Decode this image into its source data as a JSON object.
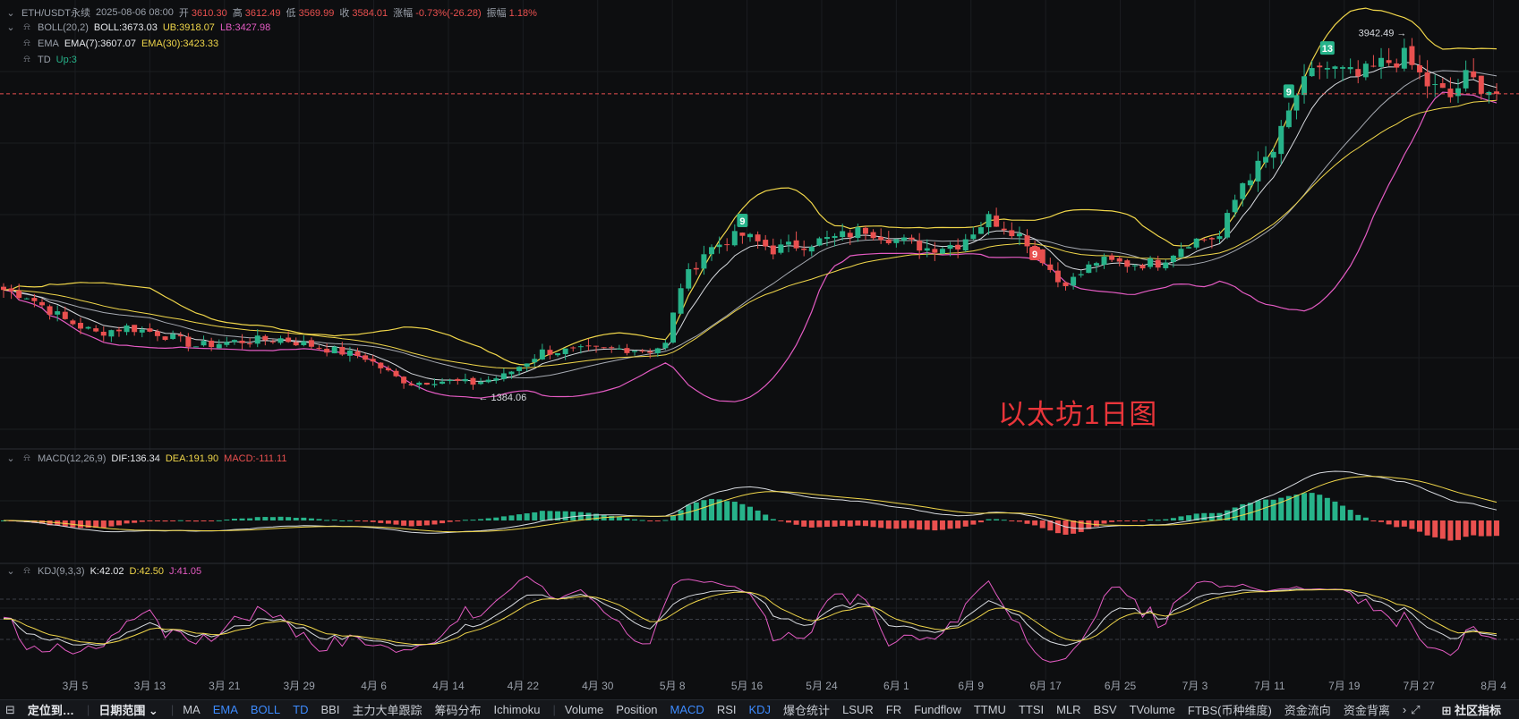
{
  "header": {
    "symbol": "ETH/USDT永续",
    "datetime": "2025-08-06 08:00",
    "open_label": "开",
    "open": "3610.30",
    "high_label": "高",
    "high": "3612.49",
    "low_label": "低",
    "low": "3569.99",
    "close_label": "收",
    "close": "3584.01",
    "change_label": "涨幅",
    "change": "-0.73%(-26.28)",
    "amp_label": "振幅",
    "amp": "1.18%"
  },
  "indicators": {
    "boll": {
      "name": "BOLL(20,2)",
      "mid": "BOLL:3673.03",
      "ub": "UB:3918.07",
      "lb": "LB:3427.98"
    },
    "ema": {
      "name": "EMA",
      "ema7": "EMA(7):3607.07",
      "ema30": "EMA(30):3423.33"
    },
    "td": {
      "name": "TD",
      "value": "Up:3"
    },
    "macd": {
      "name": "MACD(12,26,9)",
      "dif": "DIF:136.34",
      "dea": "DEA:191.90",
      "macd": "MACD:-111.11"
    },
    "kdj": {
      "name": "KDJ(9,3,3)",
      "k": "K:42.02",
      "d": "D:42.50",
      "j": "J:41.05"
    }
  },
  "annotation": "以太坊1日图",
  "colors": {
    "bg": "#0d0e10",
    "up": "#27b38a",
    "down": "#e9504f",
    "white_line": "#d8dbe0",
    "yellow_line": "#f0d64a",
    "magenta_line": "#e45bc3"
  },
  "chart_data": {
    "type": "candlestick",
    "title": "",
    "x_ticks": [
      "3月 5",
      "3月 13",
      "3月 21",
      "3月 29",
      "4月 6",
      "4月 14",
      "4月 22",
      "4月 30",
      "5月 8",
      "5月 16",
      "5月 24",
      "6月 1",
      "6月 9",
      "6月 17",
      "6月 25",
      "7月 3",
      "7月 11",
      "7月 19",
      "7月 27",
      "8月 4"
    ],
    "price_range": [
      1250,
      4100
    ],
    "labels": {
      "high": "3942.49",
      "low": "1384.06"
    },
    "td_markers": [
      {
        "text": "9",
        "index": 96,
        "price": 2700,
        "color": "up"
      },
      {
        "text": "9",
        "index": 134,
        "price": 2470,
        "color": "down"
      },
      {
        "text": "9",
        "index": 167,
        "price": 3600,
        "color": "up"
      },
      {
        "text": "13",
        "index": 172,
        "price": 3900,
        "color": "up"
      }
    ],
    "anchors": [
      [
        0,
        2220
      ],
      [
        3,
        2180
      ],
      [
        8,
        2010
      ],
      [
        12,
        1920
      ],
      [
        16,
        1960
      ],
      [
        20,
        1920
      ],
      [
        25,
        1830
      ],
      [
        30,
        1860
      ],
      [
        36,
        1880
      ],
      [
        42,
        1810
      ],
      [
        47,
        1750
      ],
      [
        51,
        1610
      ],
      [
        53,
        1570
      ],
      [
        56,
        1590
      ],
      [
        61,
        1570
      ],
      [
        65,
        1620
      ],
      [
        70,
        1790
      ],
      [
        76,
        1800
      ],
      [
        81,
        1810
      ],
      [
        84,
        1800
      ],
      [
        86,
        1840
      ],
      [
        88,
        2250
      ],
      [
        91,
        2480
      ],
      [
        94,
        2570
      ],
      [
        96,
        2600
      ],
      [
        100,
        2500
      ],
      [
        104,
        2540
      ],
      [
        108,
        2580
      ],
      [
        112,
        2640
      ],
      [
        116,
        2570
      ],
      [
        120,
        2510
      ],
      [
        124,
        2540
      ],
      [
        128,
        2720
      ],
      [
        131,
        2640
      ],
      [
        134,
        2520
      ],
      [
        137,
        2280
      ],
      [
        139,
        2290
      ],
      [
        142,
        2420
      ],
      [
        146,
        2400
      ],
      [
        150,
        2410
      ],
      [
        154,
        2560
      ],
      [
        158,
        2590
      ],
      [
        161,
        2970
      ],
      [
        165,
        3180
      ],
      [
        168,
        3580
      ],
      [
        171,
        3780
      ],
      [
        176,
        3700
      ],
      [
        179,
        3790
      ],
      [
        182,
        3840
      ],
      [
        185,
        3650
      ],
      [
        188,
        3560
      ],
      [
        190,
        3700
      ],
      [
        194,
        3584
      ]
    ]
  }
}
